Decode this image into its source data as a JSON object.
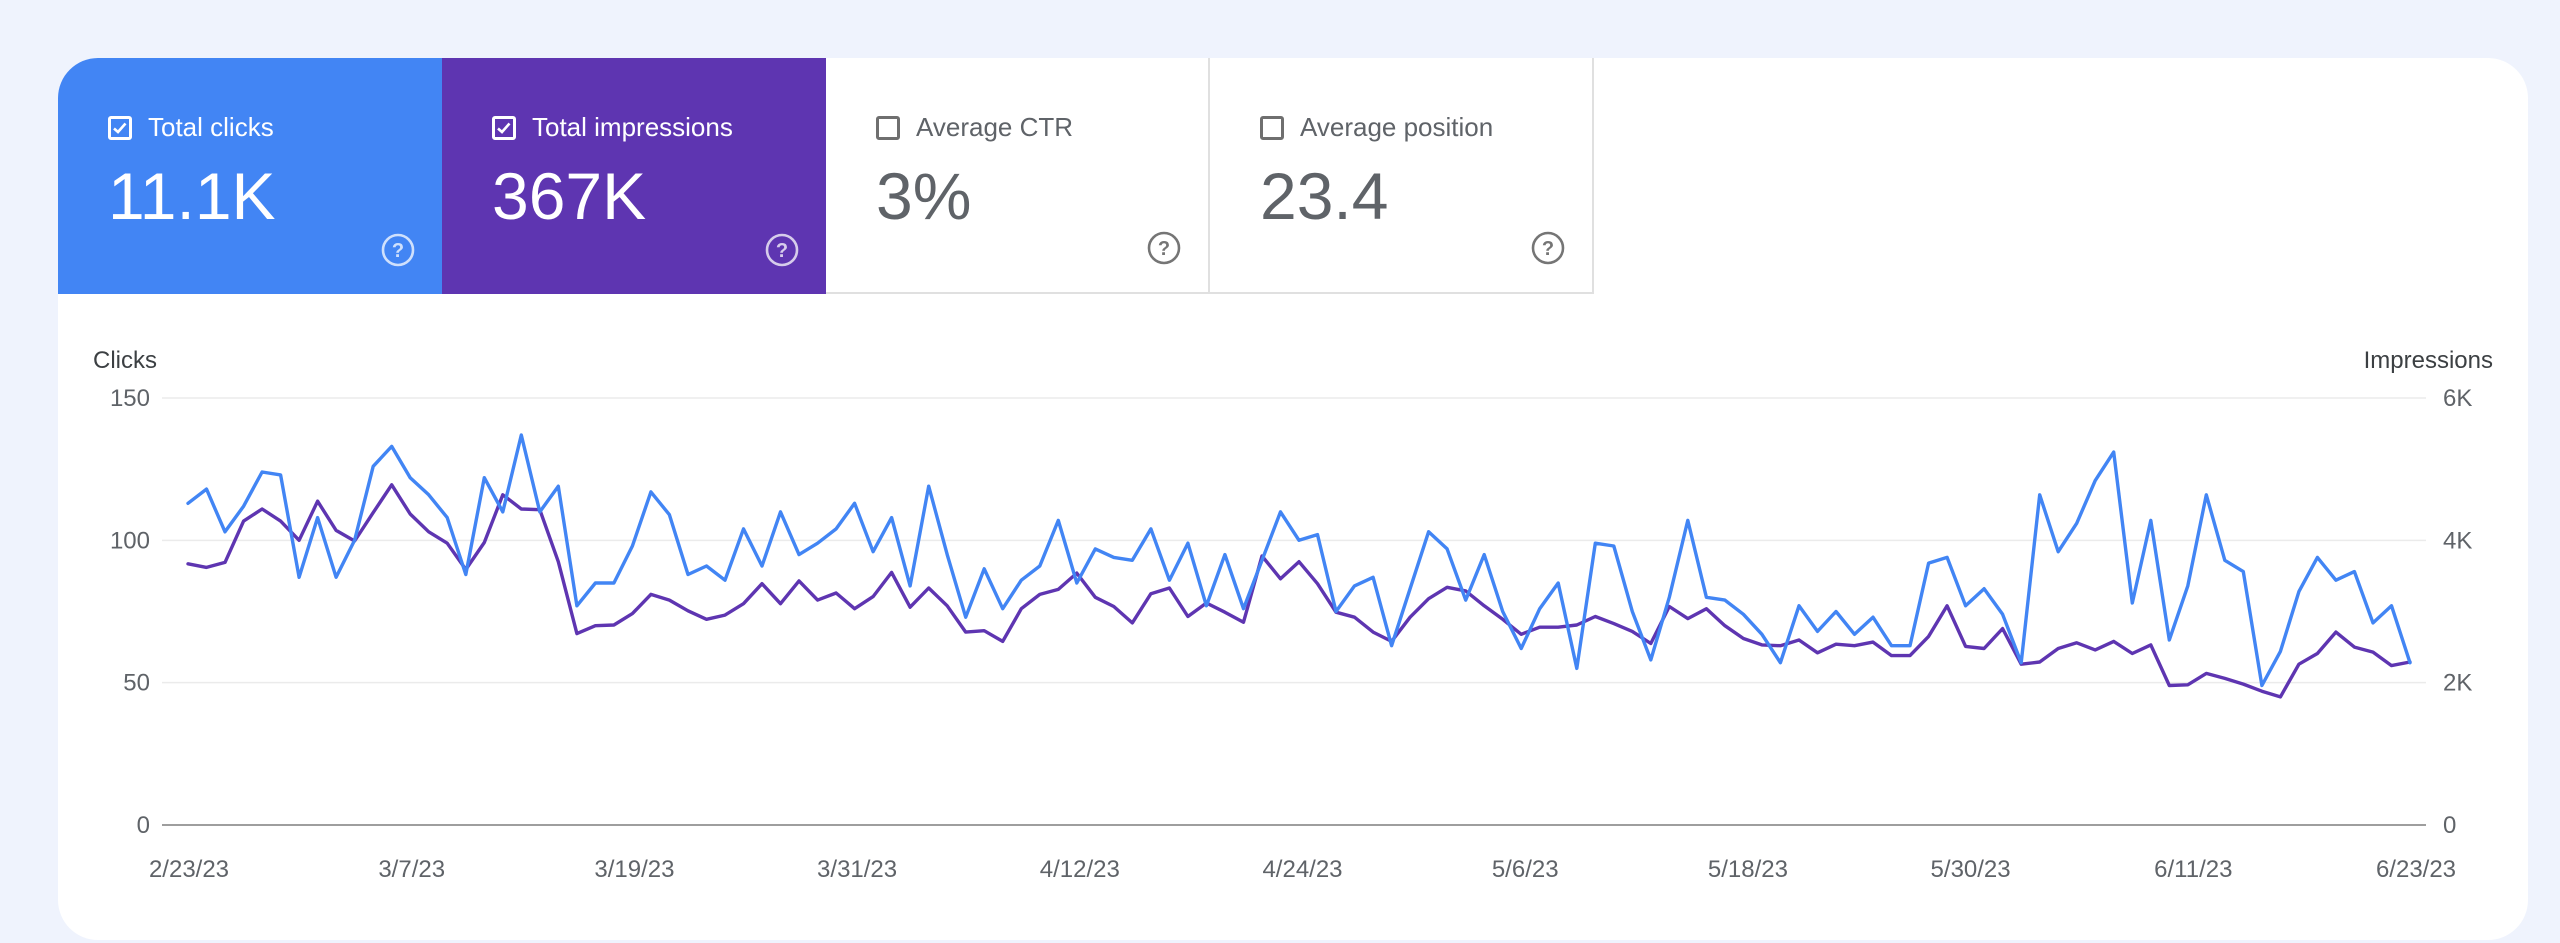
{
  "cards": [
    {
      "id": "clicks",
      "label": "Total clicks",
      "value": "11.1K",
      "checked": true,
      "color": "#4285f4"
    },
    {
      "id": "impressions",
      "label": "Total impressions",
      "value": "367K",
      "checked": true,
      "color": "#5e35b1"
    },
    {
      "id": "ctr",
      "label": "Average CTR",
      "value": "3%",
      "checked": false
    },
    {
      "id": "position",
      "label": "Average position",
      "value": "23.4",
      "checked": false
    }
  ],
  "chart_data": {
    "type": "line",
    "left_axis": {
      "title": "Clicks",
      "ticks": [
        "150",
        "100",
        "50",
        "0"
      ],
      "range": [
        0,
        150
      ]
    },
    "right_axis": {
      "title": "Impressions",
      "ticks": [
        "6K",
        "4K",
        "2K",
        "0"
      ],
      "range": [
        0,
        6000
      ]
    },
    "x_ticks": [
      "2/23/23",
      "3/7/23",
      "3/19/23",
      "3/31/23",
      "4/12/23",
      "4/24/23",
      "5/6/23",
      "5/18/23",
      "5/30/23",
      "6/11/23",
      "6/23/23"
    ],
    "series": [
      {
        "name": "Total clicks",
        "axis": "left",
        "color": "#4285f4",
        "values": [
          113,
          118,
          103,
          112,
          124,
          123,
          87,
          108,
          87,
          100,
          126,
          133,
          122,
          116,
          108,
          88,
          122,
          110,
          137,
          110,
          119,
          77,
          85,
          85,
          98,
          117,
          109,
          88,
          91,
          86,
          104,
          91,
          110,
          95,
          99,
          104,
          113,
          96,
          108,
          84,
          119,
          95,
          73,
          90,
          76,
          86,
          91,
          107,
          85,
          97,
          94,
          93,
          104,
          86,
          99,
          77,
          95,
          76,
          93,
          110,
          100,
          102,
          75,
          84,
          87,
          63,
          83,
          103,
          97,
          79,
          95,
          75,
          62,
          76,
          85,
          55,
          99,
          98,
          75,
          58,
          80,
          107,
          80,
          79,
          74,
          67,
          57,
          77,
          68,
          75,
          67,
          73,
          63,
          63,
          92,
          94,
          77,
          83,
          74,
          57,
          116,
          96,
          106,
          121,
          131,
          78,
          107,
          65,
          84,
          116,
          93,
          89,
          49,
          61,
          82,
          94,
          86,
          89,
          71,
          77,
          57
        ]
      },
      {
        "name": "Total impressions",
        "axis": "right",
        "color": "#5e35b1",
        "values": [
          3670,
          3620,
          3690,
          4270,
          4440,
          4270,
          4000,
          4550,
          4140,
          3990,
          4390,
          4780,
          4370,
          4120,
          3960,
          3590,
          3970,
          4640,
          4440,
          4430,
          3700,
          2690,
          2800,
          2810,
          2970,
          3240,
          3160,
          3010,
          2890,
          2950,
          3110,
          3390,
          3110,
          3430,
          3160,
          3260,
          3040,
          3210,
          3550,
          3060,
          3330,
          3080,
          2710,
          2730,
          2580,
          3040,
          3240,
          3310,
          3540,
          3200,
          3070,
          2840,
          3250,
          3330,
          2930,
          3120,
          2990,
          2850,
          3780,
          3460,
          3700,
          3390,
          2990,
          2920,
          2710,
          2580,
          2920,
          3180,
          3340,
          3290,
          3080,
          2890,
          2680,
          2780,
          2780,
          2810,
          2930,
          2830,
          2720,
          2550,
          3070,
          2900,
          3040,
          2800,
          2620,
          2530,
          2520,
          2600,
          2420,
          2540,
          2520,
          2570,
          2380,
          2380,
          2650,
          3080,
          2510,
          2480,
          2760,
          2260,
          2290,
          2480,
          2560,
          2460,
          2580,
          2410,
          2530,
          1960,
          1970,
          2130,
          2060,
          1980,
          1880,
          1800,
          2260,
          2410,
          2710,
          2500,
          2430,
          2240,
          2290
        ]
      }
    ]
  }
}
